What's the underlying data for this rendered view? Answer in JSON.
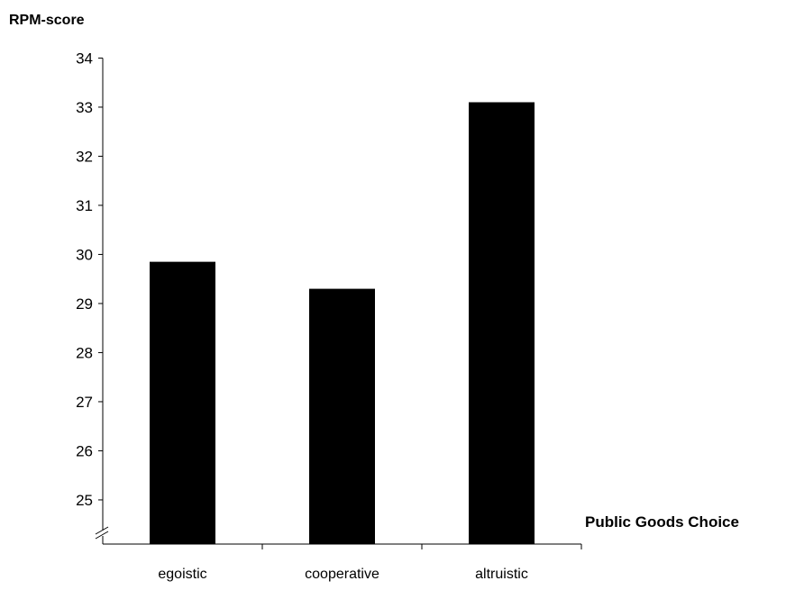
{
  "chart_data": {
    "type": "bar",
    "title": "",
    "ylabel": "RPM-score",
    "xlabel": "Public Goods Choice",
    "categories": [
      "egoistic",
      "cooperative",
      "altruistic"
    ],
    "values": [
      29.85,
      29.3,
      33.1
    ],
    "ylim": [
      24.1,
      34
    ],
    "yticks": [
      25,
      26,
      27,
      28,
      29,
      30,
      31,
      32,
      33,
      34
    ],
    "axis_break": true,
    "grid": false,
    "legend": "none",
    "bar_color": "#000000"
  }
}
